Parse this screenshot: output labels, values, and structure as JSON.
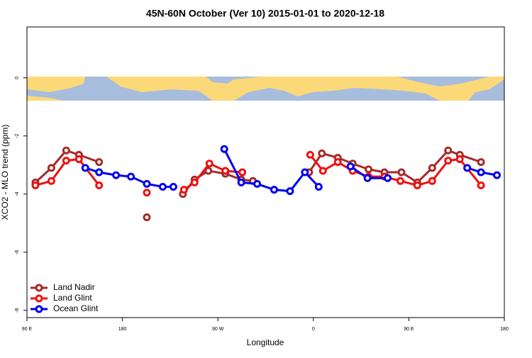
{
  "chart_data": {
    "type": "line",
    "title": "45N-60N October (Ver 10)   2015-01-01 to 2020-12-18",
    "x_label": "Longitude",
    "y_label": "XCO2 - MLO trend (ppm)",
    "xlim": [
      90,
      540
    ],
    "xticks": [
      {
        "value": 90,
        "label": "90 E"
      },
      {
        "value": 180,
        "label": "180"
      },
      {
        "value": 270,
        "label": "90 W"
      },
      {
        "value": 360,
        "label": "0"
      },
      {
        "value": 450,
        "label": "90 E"
      },
      {
        "value": 540,
        "label": "180"
      }
    ],
    "ylim": [
      -8.25,
      1.75
    ],
    "yticks": [
      0,
      -2,
      -4,
      -6,
      -8
    ],
    "legend": "bottomleft",
    "series": [
      {
        "name": "Land Nadir",
        "color": "#a52a2a",
        "x": [
          98,
          113,
          127,
          139,
          158,
          null,
          203,
          null,
          237,
          248,
          261,
          277,
          292,
          303,
          null,
          356,
          368,
          383,
          397,
          412,
          427,
          443,
          458,
          472,
          487,
          498,
          518
        ],
        "values": [
          -3.6,
          -3.1,
          -2.5,
          -2.65,
          -2.9,
          null,
          -4.8,
          null,
          -4.0,
          -3.5,
          -3.2,
          -3.3,
          -3.5,
          -3.55,
          null,
          -3.25,
          -2.6,
          -2.75,
          -2.95,
          -3.15,
          -3.25,
          -3.25,
          -3.6,
          -3.1,
          -2.5,
          -2.65,
          -2.9
        ]
      },
      {
        "name": "Land Glint",
        "color": "#ee1111",
        "x": [
          98,
          113,
          127,
          139,
          158,
          null,
          203,
          null,
          238,
          248,
          262,
          277,
          293,
          null,
          357,
          369,
          383,
          397,
          412,
          427,
          442,
          458,
          472,
          487,
          498,
          518
        ],
        "values": [
          -3.7,
          -3.55,
          -2.85,
          -2.8,
          -3.7,
          null,
          -3.95,
          null,
          -3.85,
          -3.6,
          -2.95,
          -3.2,
          -3.25,
          null,
          -2.65,
          -3.2,
          -2.9,
          -3.2,
          -3.4,
          -3.4,
          -3.55,
          -3.7,
          -3.55,
          -2.85,
          -2.8,
          -3.7
        ]
      },
      {
        "name": "Ocean Glint",
        "color": "#0000ee",
        "x": [
          145,
          158,
          174,
          188,
          203,
          218,
          228,
          null,
          276,
          292,
          307,
          323,
          338,
          352,
          365,
          null,
          395,
          411,
          430,
          null,
          505,
          518,
          533
        ],
        "values": [
          -3.1,
          -3.25,
          -3.35,
          -3.4,
          -3.65,
          -3.75,
          -3.75,
          null,
          -2.45,
          -3.6,
          -3.65,
          -3.85,
          -3.9,
          -3.25,
          -3.75,
          null,
          -3.05,
          -3.45,
          -3.45,
          null,
          -3.1,
          -3.25,
          -3.35
        ]
      }
    ]
  }
}
